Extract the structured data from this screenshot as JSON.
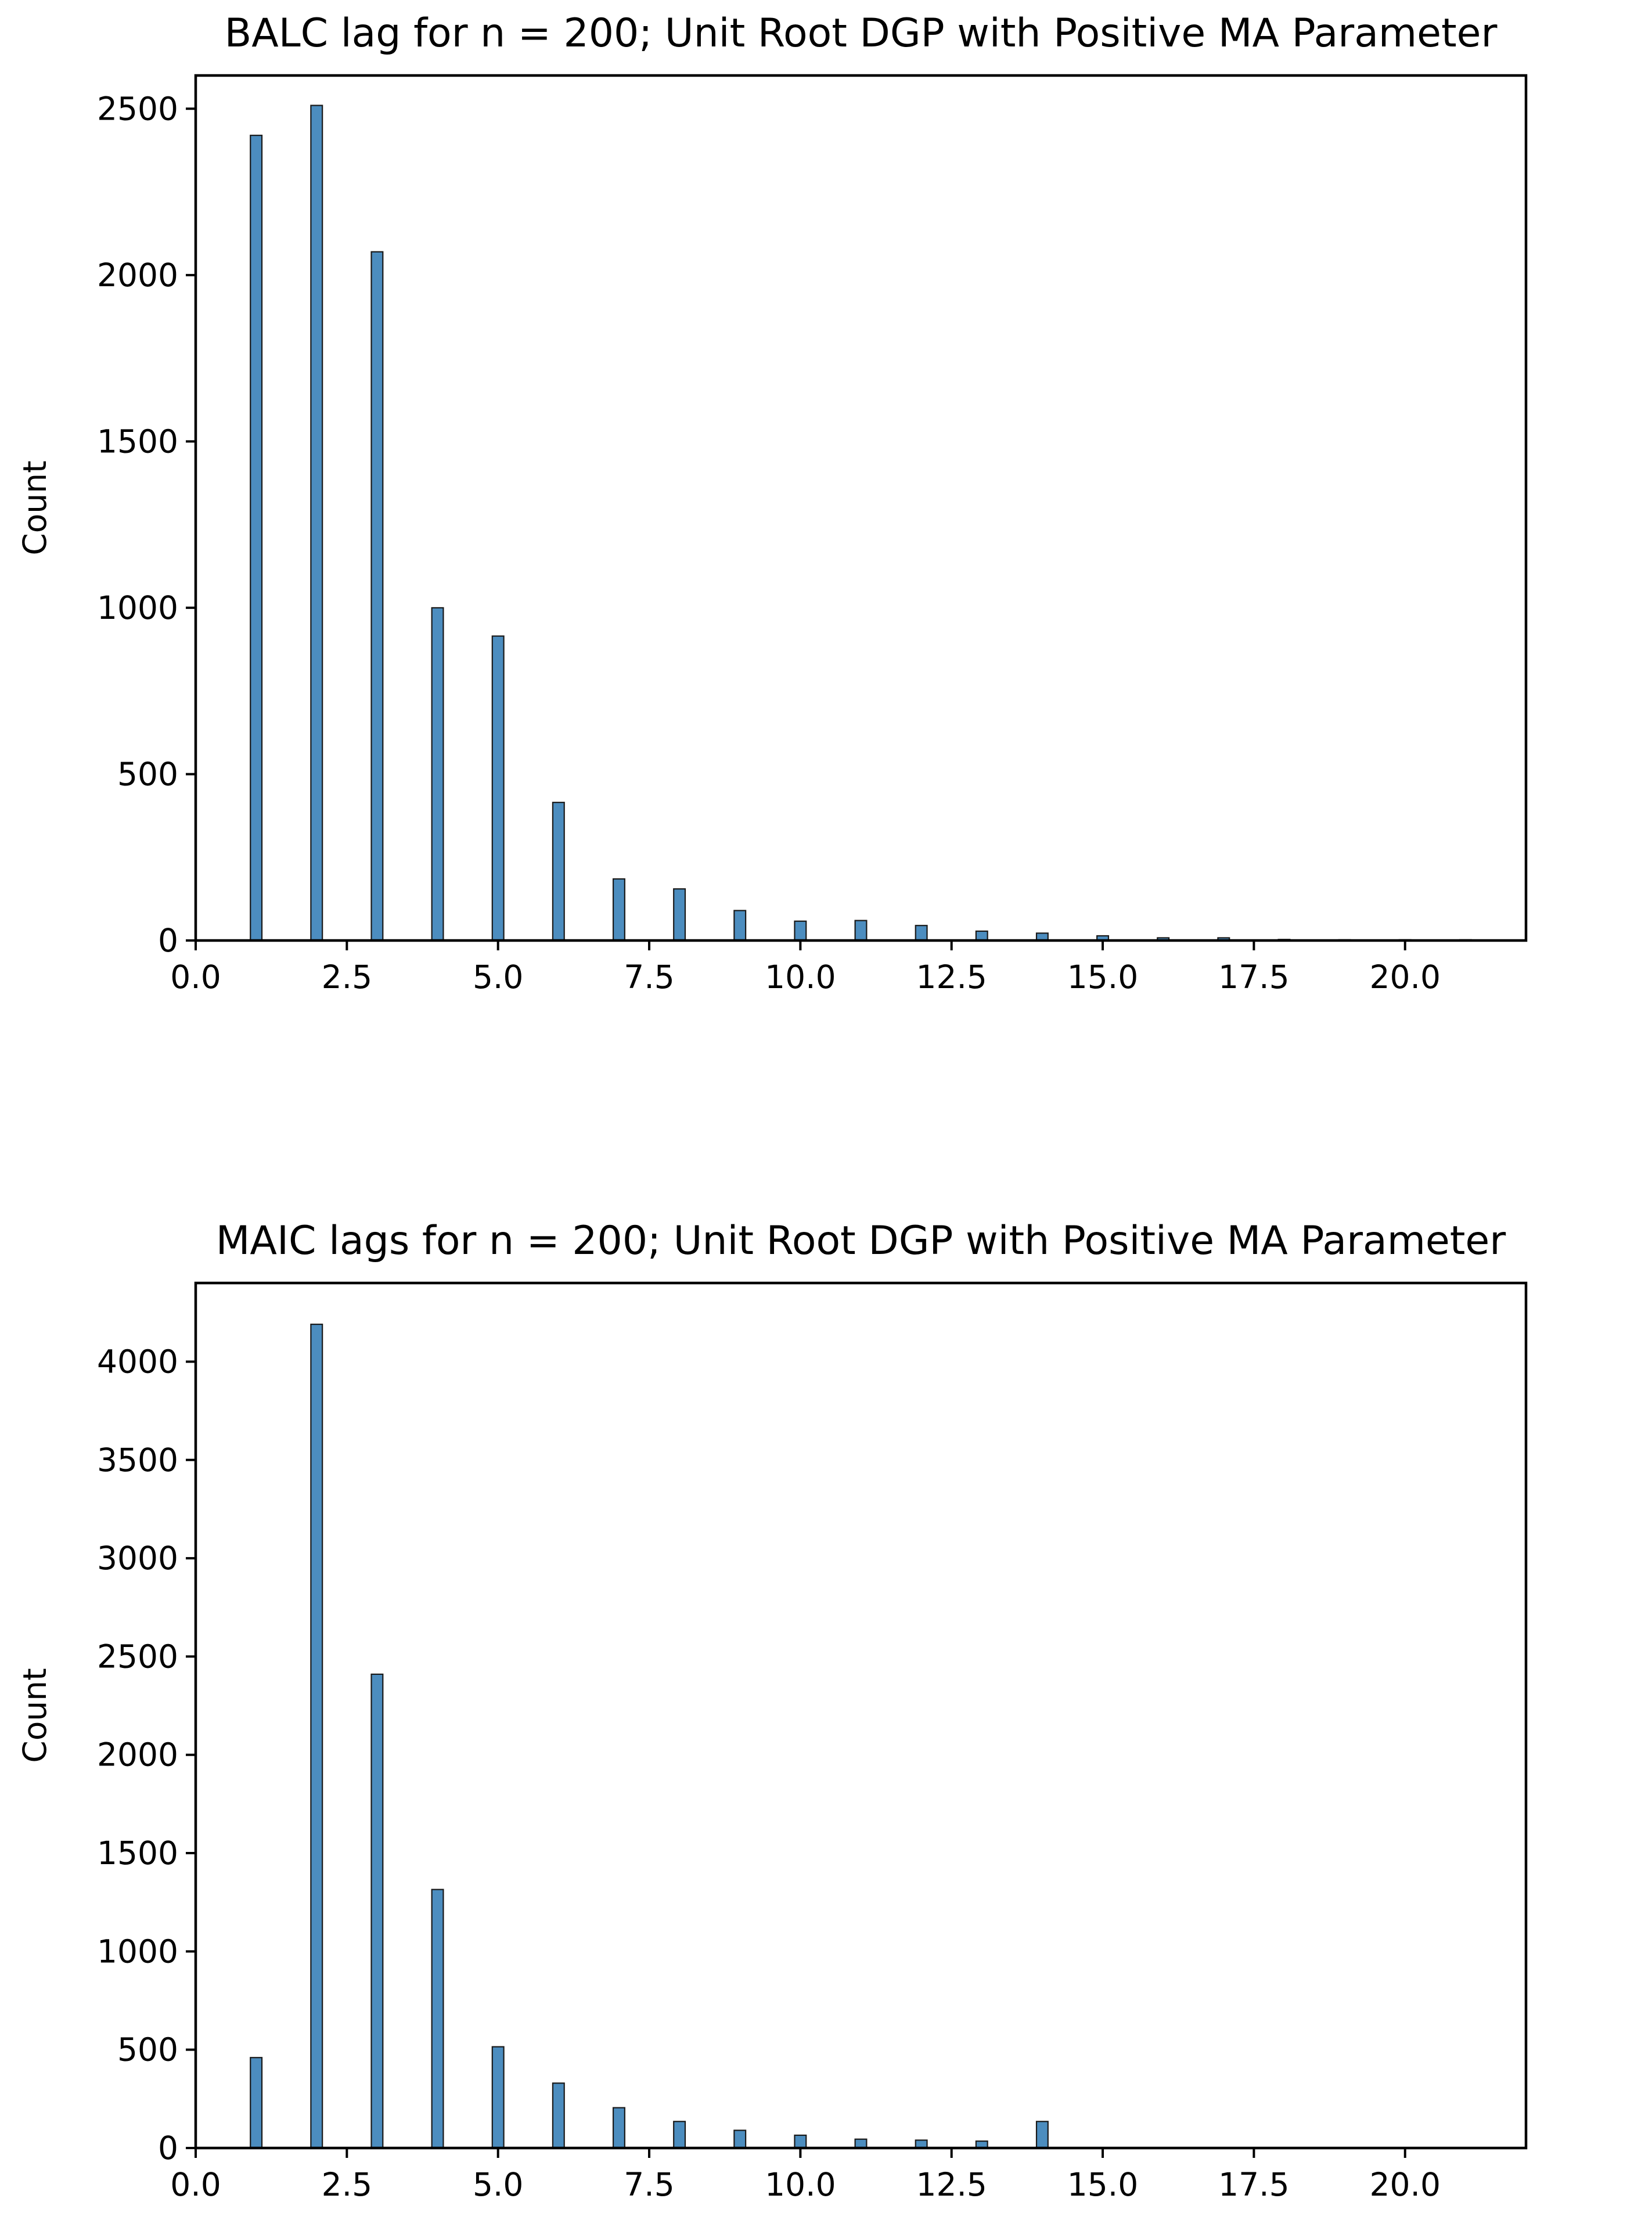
{
  "chart_data": [
    {
      "type": "bar",
      "title": "BALC lag for n = 200; Unit Root DGP with Positive MA Parameter",
      "xlabel": "",
      "ylabel": "Count",
      "xlim": [
        0,
        22
      ],
      "ylim": [
        0,
        2600
      ],
      "xticks": [
        "0.0",
        "2.5",
        "5.0",
        "7.5",
        "10.0",
        "12.5",
        "15.0",
        "17.5",
        "20.0"
      ],
      "yticks": [
        "0",
        "500",
        "1000",
        "1500",
        "2000",
        "2500"
      ],
      "bar_color": "#4c8dbf",
      "x": [
        1,
        2,
        3,
        4,
        5,
        6,
        7,
        8,
        9,
        10,
        11,
        12,
        13,
        14,
        15,
        16,
        17,
        18,
        19,
        20,
        21
      ],
      "values": [
        2420,
        2510,
        2070,
        1000,
        915,
        415,
        185,
        155,
        90,
        58,
        60,
        45,
        28,
        22,
        14,
        8,
        8,
        3,
        2,
        2,
        2
      ]
    },
    {
      "type": "bar",
      "title": "MAIC lags for n = 200; Unit Root DGP with Positive MA Parameter",
      "xlabel": "",
      "ylabel": "Count",
      "xlim": [
        0,
        22
      ],
      "ylim": [
        0,
        4400
      ],
      "xticks": [
        "0.0",
        "2.5",
        "5.0",
        "7.5",
        "10.0",
        "12.5",
        "15.0",
        "17.5",
        "20.0"
      ],
      "yticks": [
        "0",
        "500",
        "1000",
        "1500",
        "2000",
        "2500",
        "3000",
        "3500",
        "4000"
      ],
      "bar_color": "#4c8dbf",
      "x": [
        1,
        2,
        3,
        4,
        5,
        6,
        7,
        8,
        9,
        10,
        11,
        12,
        13,
        14
      ],
      "values": [
        460,
        4190,
        2410,
        1315,
        515,
        330,
        205,
        135,
        90,
        65,
        45,
        40,
        35,
        135
      ]
    }
  ]
}
